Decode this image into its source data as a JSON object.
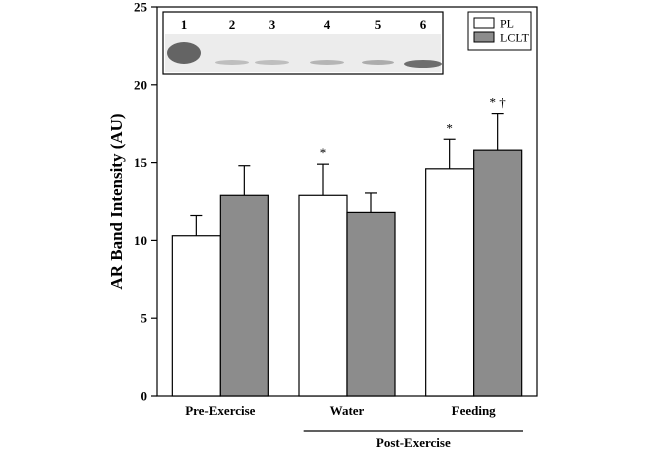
{
  "chart_data": {
    "type": "bar",
    "ylabel": "AR Band Intensity (AU)",
    "ylim": [
      0,
      25
    ],
    "yticks": [
      0,
      5,
      10,
      15,
      20,
      25
    ],
    "categories": [
      "Pre-Exercise",
      "Water",
      "Feeding"
    ],
    "group_label": {
      "text": "Post-Exercise",
      "spans": [
        "Water",
        "Feeding"
      ]
    },
    "series": [
      {
        "name": "PL",
        "color": "#ffffff",
        "values": [
          10.3,
          12.9,
          14.6
        ],
        "errors": [
          1.3,
          2.0,
          1.9
        ]
      },
      {
        "name": "LCLT",
        "color": "#8c8c8c",
        "values": [
          12.9,
          11.8,
          15.8
        ],
        "errors": [
          1.9,
          1.25,
          2.35
        ]
      }
    ],
    "annotations": [
      {
        "category": "Water",
        "series": "PL",
        "text": "*"
      },
      {
        "category": "Feeding",
        "series": "PL",
        "text": "*"
      },
      {
        "category": "Feeding",
        "series": "LCLT",
        "text": "* †"
      }
    ],
    "legend_position": "top-right",
    "inset_blot": {
      "lanes": [
        "1",
        "2",
        "3",
        "4",
        "5",
        "6"
      ],
      "band_intensity": [
        0.75,
        0.25,
        0.25,
        0.3,
        0.35,
        0.7
      ]
    }
  }
}
